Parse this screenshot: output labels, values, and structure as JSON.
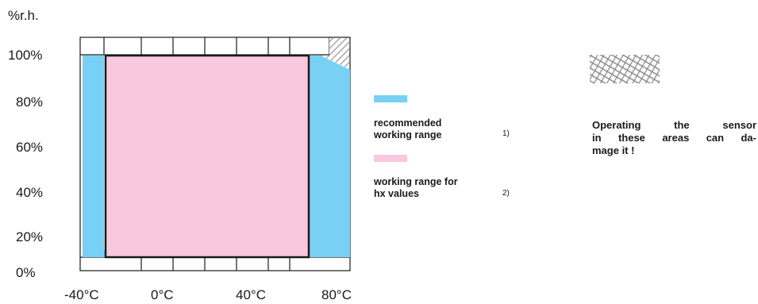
{
  "y_axis": {
    "unit": "%r.h.",
    "ticks": [
      "100%",
      "80%",
      "60%",
      "40%",
      "20%",
      "0%"
    ]
  },
  "x_axis": {
    "ticks": [
      "-40°C",
      "0°C",
      "40°C",
      "80°C"
    ]
  },
  "legend": {
    "recommended": {
      "label_line1": "recommended",
      "label_line2": "working range",
      "note": "1)",
      "color": "#79d0f5"
    },
    "hx": {
      "label_line1": "working range for",
      "label_line2": "hx values",
      "note": "2)",
      "color": "#f7c8de"
    }
  },
  "warning": {
    "line1": "Operating the sensor",
    "line2": "in these areas can da-",
    "line3": "mage it !"
  },
  "colors": {
    "recommended": "#79d0f5",
    "hx": "#f7c8de",
    "outline": "#1a1a1a"
  }
}
